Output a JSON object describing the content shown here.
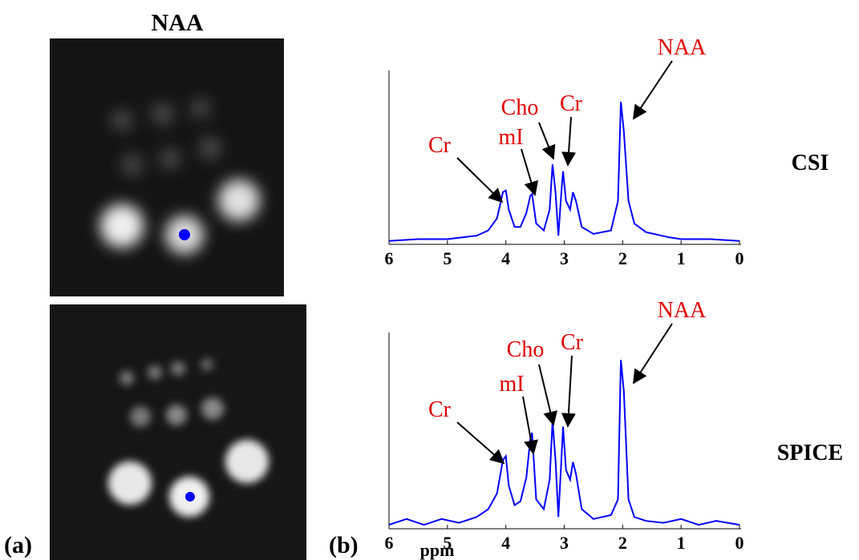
{
  "figure": {
    "title": "NAA",
    "panel_a": "(a)",
    "panel_b": "(b)",
    "row_labels": [
      "CSI",
      "SPICE"
    ]
  },
  "chart_data": [
    {
      "type": "line",
      "color": "#0000ff",
      "xlim": [
        6,
        0
      ],
      "ylim": [
        0,
        1
      ],
      "xticks": [
        6,
        5,
        4,
        3,
        2,
        1,
        0
      ],
      "annotations": [
        "Cr",
        "mI",
        "Cho",
        "Cr",
        "NAA"
      ],
      "x": [
        6,
        5.5,
        5,
        4.5,
        4.3,
        4.15,
        4.05,
        4.0,
        3.95,
        3.85,
        3.75,
        3.65,
        3.58,
        3.55,
        3.48,
        3.35,
        3.25,
        3.2,
        3.15,
        3.1,
        3.05,
        3.02,
        2.97,
        2.9,
        2.85,
        2.8,
        2.7,
        2.5,
        2.2,
        2.08,
        2.03,
        1.98,
        1.9,
        1.8,
        1.6,
        1.2,
        1.0,
        0.5,
        0
      ],
      "values": [
        0.02,
        0.03,
        0.03,
        0.05,
        0.08,
        0.15,
        0.3,
        0.31,
        0.2,
        0.1,
        0.1,
        0.18,
        0.28,
        0.29,
        0.12,
        0.08,
        0.2,
        0.46,
        0.3,
        0.05,
        0.3,
        0.42,
        0.25,
        0.2,
        0.3,
        0.25,
        0.1,
        0.06,
        0.08,
        0.25,
        0.82,
        0.65,
        0.25,
        0.12,
        0.07,
        0.04,
        0.03,
        0.03,
        0.02
      ]
    },
    {
      "type": "line",
      "color": "#0000ff",
      "xlim": [
        6,
        0
      ],
      "ylim": [
        0,
        1
      ],
      "xticks": [
        6,
        5,
        4,
        3,
        2,
        1,
        0
      ],
      "xlabel": "ppm",
      "annotations": [
        "Cr",
        "mI",
        "Cho",
        "Cr",
        "NAA"
      ],
      "x": [
        6,
        5.7,
        5.4,
        5.1,
        4.8,
        4.5,
        4.3,
        4.15,
        4.05,
        4.0,
        3.95,
        3.85,
        3.75,
        3.65,
        3.58,
        3.55,
        3.48,
        3.35,
        3.25,
        3.2,
        3.15,
        3.1,
        3.05,
        3.02,
        2.97,
        2.9,
        2.85,
        2.8,
        2.7,
        2.5,
        2.2,
        2.08,
        2.03,
        1.98,
        1.9,
        1.8,
        1.6,
        1.3,
        1.0,
        0.7,
        0.4,
        0
      ],
      "values": [
        0.02,
        0.05,
        0.02,
        0.05,
        0.03,
        0.06,
        0.1,
        0.18,
        0.35,
        0.37,
        0.22,
        0.12,
        0.14,
        0.26,
        0.46,
        0.49,
        0.15,
        0.1,
        0.25,
        0.55,
        0.35,
        0.06,
        0.35,
        0.52,
        0.3,
        0.25,
        0.34,
        0.28,
        0.1,
        0.05,
        0.07,
        0.15,
        0.86,
        0.7,
        0.15,
        0.06,
        0.04,
        0.03,
        0.05,
        0.02,
        0.04,
        0.02
      ]
    }
  ]
}
